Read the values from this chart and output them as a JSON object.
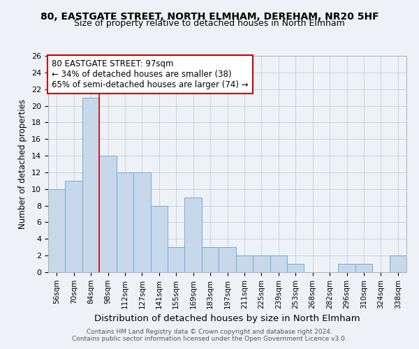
{
  "title1": "80, EASTGATE STREET, NORTH ELMHAM, DEREHAM, NR20 5HF",
  "title2": "Size of property relative to detached houses in North Elmham",
  "xlabel": "Distribution of detached houses by size in North Elmham",
  "ylabel": "Number of detached properties",
  "categories": [
    "56sqm",
    "70sqm",
    "84sqm",
    "98sqm",
    "112sqm",
    "127sqm",
    "141sqm",
    "155sqm",
    "169sqm",
    "183sqm",
    "197sqm",
    "211sqm",
    "225sqm",
    "239sqm",
    "253sqm",
    "268sqm",
    "282sqm",
    "296sqm",
    "310sqm",
    "324sqm",
    "338sqm"
  ],
  "values": [
    10,
    11,
    21,
    14,
    12,
    12,
    8,
    3,
    9,
    3,
    3,
    2,
    2,
    2,
    1,
    0,
    0,
    1,
    1,
    0,
    2
  ],
  "bar_color": "#c8d8eb",
  "bar_edge_color": "#6baed6",
  "annotation_line1": "80 EASTGATE STREET: 97sqm",
  "annotation_line2": "← 34% of detached houses are smaller (38)",
  "annotation_line3": "65% of semi-detached houses are larger (74) →",
  "annotation_box_color": "white",
  "annotation_border_color": "#cc0000",
  "vline_color": "#cc0000",
  "ylim": [
    0,
    26
  ],
  "yticks": [
    0,
    2,
    4,
    6,
    8,
    10,
    12,
    14,
    16,
    18,
    20,
    22,
    24,
    26
  ],
  "footer1": "Contains HM Land Registry data © Crown copyright and database right 2024.",
  "footer2": "Contains public sector information licensed under the Open Government Licence v3.0.",
  "background_color": "#eef2f7",
  "grid_color": "#c5cdd8",
  "title1_fontsize": 10,
  "title2_fontsize": 9
}
